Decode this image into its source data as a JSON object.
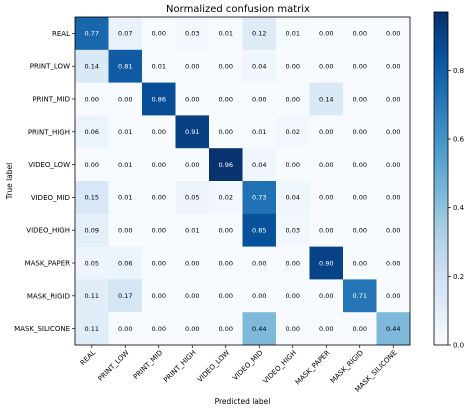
{
  "chart_data": {
    "type": "heatmap",
    "title": "Normalized confusion matrix",
    "xlabel": "Predicted label",
    "ylabel": "True label",
    "classes": [
      "REAL",
      "PRINT_LOW",
      "PRINT_MID",
      "PRINT_HIGH",
      "VIDEO_LOW",
      "VIDEO_MID",
      "VIDEO_HIGH",
      "MASK_PAPER",
      "MASK_RIGID",
      "MASK_SILICONE"
    ],
    "matrix": [
      [
        0.77,
        0.07,
        0.0,
        0.03,
        0.01,
        0.12,
        0.01,
        0.0,
        0.0,
        0.0
      ],
      [
        0.14,
        0.81,
        0.01,
        0.0,
        0.0,
        0.04,
        0.0,
        0.0,
        0.0,
        0.0
      ],
      [
        0.0,
        0.0,
        0.86,
        0.0,
        0.0,
        0.0,
        0.0,
        0.14,
        0.0,
        0.0
      ],
      [
        0.06,
        0.01,
        0.0,
        0.91,
        0.0,
        0.01,
        0.02,
        0.0,
        0.0,
        0.0
      ],
      [
        0.0,
        0.01,
        0.0,
        0.0,
        0.96,
        0.04,
        0.0,
        0.0,
        0.0,
        0.0
      ],
      [
        0.15,
        0.01,
        0.0,
        0.05,
        0.02,
        0.73,
        0.04,
        0.0,
        0.0,
        0.0
      ],
      [
        0.09,
        0.0,
        0.0,
        0.01,
        0.0,
        0.85,
        0.03,
        0.0,
        0.0,
        0.0
      ],
      [
        0.05,
        0.06,
        0.0,
        0.0,
        0.0,
        0.0,
        0.0,
        0.9,
        0.0,
        0.0
      ],
      [
        0.11,
        0.17,
        0.0,
        0.0,
        0.0,
        0.0,
        0.0,
        0.0,
        0.71,
        0.0
      ],
      [
        0.11,
        0.0,
        0.0,
        0.0,
        0.0,
        0.44,
        0.0,
        0.0,
        0.0,
        0.44
      ]
    ],
    "colormap": "Blues",
    "colorbar": {
      "range": [
        0.0,
        0.97
      ],
      "ticks": [
        "0.0",
        "0.2",
        "0.4",
        "0.6",
        "0.8"
      ]
    }
  }
}
